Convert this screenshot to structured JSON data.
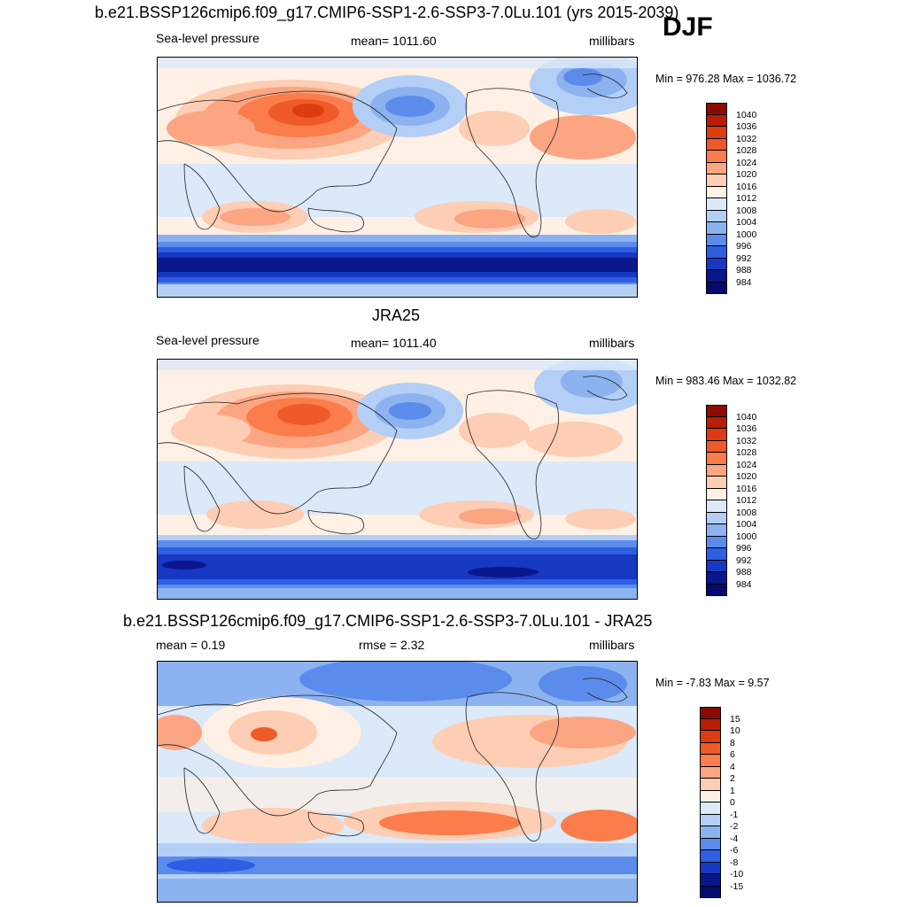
{
  "header": {
    "title": "b.e21.BSSP126cmip6.f09_g17.CMIP6-SSP1-2.6-SSP3-7.0Lu.101 (yrs 2015-2039)",
    "season": "DJF"
  },
  "panel1": {
    "left": "Sea-level pressure",
    "center": "mean= 1011.60",
    "right": "millibars",
    "minmax": "Min = 976.28 Max = 1036.72",
    "levels": [
      "1040",
      "1036",
      "1032",
      "1028",
      "1024",
      "1020",
      "1016",
      "1012",
      "1008",
      "1004",
      "1000",
      "996",
      "992",
      "988",
      "984"
    ]
  },
  "panel2": {
    "title": "JRA25",
    "left": "Sea-level pressure",
    "center": "mean= 1011.40",
    "right": "millibars",
    "minmax": "Min = 983.46 Max = 1032.82",
    "levels": [
      "1040",
      "1036",
      "1032",
      "1028",
      "1024",
      "1020",
      "1016",
      "1012",
      "1008",
      "1004",
      "1000",
      "996",
      "992",
      "988",
      "984"
    ]
  },
  "panel3": {
    "title": "b.e21.BSSP126cmip6.f09_g17.CMIP6-SSP1-2.6-SSP3-7.0Lu.101 - JRA25",
    "left": "mean =   0.19",
    "center": "rmse =   2.32",
    "right": "millibars",
    "minmax": "Min =  -7.83 Max =   9.57",
    "levels": [
      "15",
      "10",
      "8",
      "6",
      "4",
      "2",
      "1",
      "0",
      "-1",
      "-2",
      "-4",
      "-6",
      "-8",
      "-10",
      "-15"
    ]
  },
  "colors": {
    "scale": [
      "#8c0a00",
      "#b91e05",
      "#dc3c0f",
      "#f05a28",
      "#fa7d4b",
      "#fca582",
      "#fdcdb4",
      "#fef0e4",
      "#dbe9f9",
      "#b4cff6",
      "#8cb2f0",
      "#5c8ceb",
      "#2e5ee2",
      "#1638c2",
      "#0a168c",
      "#050a6e"
    ]
  }
}
